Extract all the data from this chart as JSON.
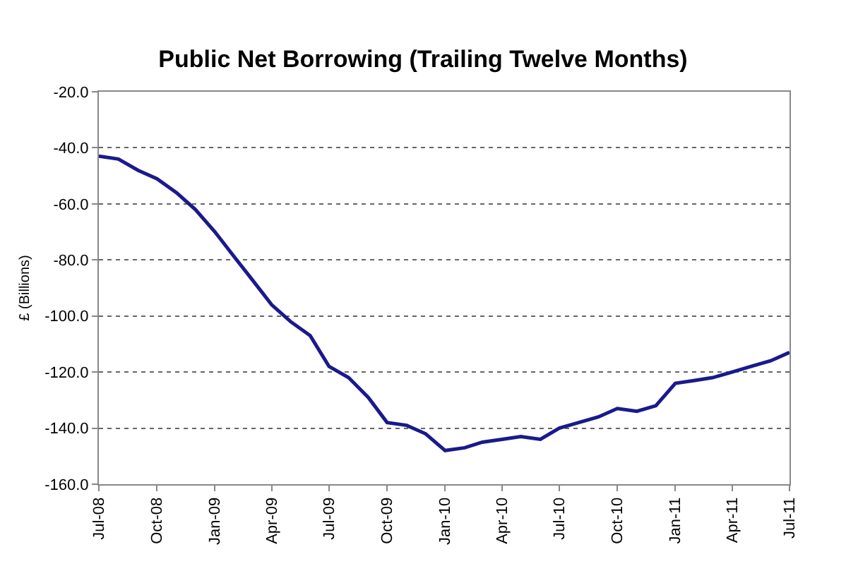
{
  "chart_data": {
    "type": "line",
    "title": "Public Net Borrowing (Trailing Twelve Months)",
    "ylabel": "£ (Billions)",
    "x": [
      "2008-07",
      "2008-08",
      "2008-09",
      "2008-10",
      "2008-11",
      "2008-12",
      "2009-01",
      "2009-02",
      "2009-03",
      "2009-04",
      "2009-05",
      "2009-06",
      "2009-07",
      "2009-08",
      "2009-09",
      "2009-10",
      "2009-11",
      "2009-12",
      "2010-01",
      "2010-02",
      "2010-03",
      "2010-04",
      "2010-05",
      "2010-06",
      "2010-07",
      "2010-08",
      "2010-09",
      "2010-10",
      "2010-11",
      "2010-12",
      "2011-01",
      "2011-02",
      "2011-03",
      "2011-04",
      "2011-05",
      "2011-06",
      "2011-07"
    ],
    "series": [
      {
        "color": "#1a1a8c",
        "values": [
          -43,
          -44,
          -48,
          -51,
          -56,
          -62,
          -70,
          -79,
          -87,
          -96,
          -102,
          -107,
          -118,
          -122,
          -129,
          -138,
          -139,
          -142,
          -148,
          -147,
          -145,
          -144,
          -143,
          -144,
          -140,
          -138,
          -136,
          -133,
          -134,
          -132,
          -124,
          -123,
          -122,
          -120,
          -118,
          -116,
          -113
        ]
      }
    ],
    "xlim": [
      "2008-07",
      "2011-07"
    ],
    "xticks": [
      {
        "value": "2008-07",
        "label": "Jul-08"
      },
      {
        "value": "2008-10",
        "label": "Oct-08"
      },
      {
        "value": "2009-01",
        "label": "Jan-09"
      },
      {
        "value": "2009-04",
        "label": "Apr-09"
      },
      {
        "value": "2009-07",
        "label": "Jul-09"
      },
      {
        "value": "2009-10",
        "label": "Oct-09"
      },
      {
        "value": "2010-01",
        "label": "Jan-10"
      },
      {
        "value": "2010-04",
        "label": "Apr-10"
      },
      {
        "value": "2010-07",
        "label": "Jul-10"
      },
      {
        "value": "2010-10",
        "label": "Oct-10"
      },
      {
        "value": "2011-01",
        "label": "Jan-11"
      },
      {
        "value": "2011-04",
        "label": "Apr-11"
      },
      {
        "value": "2011-07",
        "label": "Jul-11"
      }
    ],
    "ylim": [
      -160,
      -20
    ],
    "yticks": [
      {
        "value": -160,
        "label": "-160.0"
      },
      {
        "value": -140,
        "label": "-140.0"
      },
      {
        "value": -120,
        "label": "-120.0"
      },
      {
        "value": -100,
        "label": "-100.0"
      },
      {
        "value": -80,
        "label": "-80.0"
      },
      {
        "value": -60,
        "label": "-60.0"
      },
      {
        "value": -40,
        "label": "-40.0"
      },
      {
        "value": -20,
        "label": "-20.0"
      }
    ],
    "grid": "y",
    "legend": false,
    "marker": "none",
    "line_style": "solid"
  }
}
